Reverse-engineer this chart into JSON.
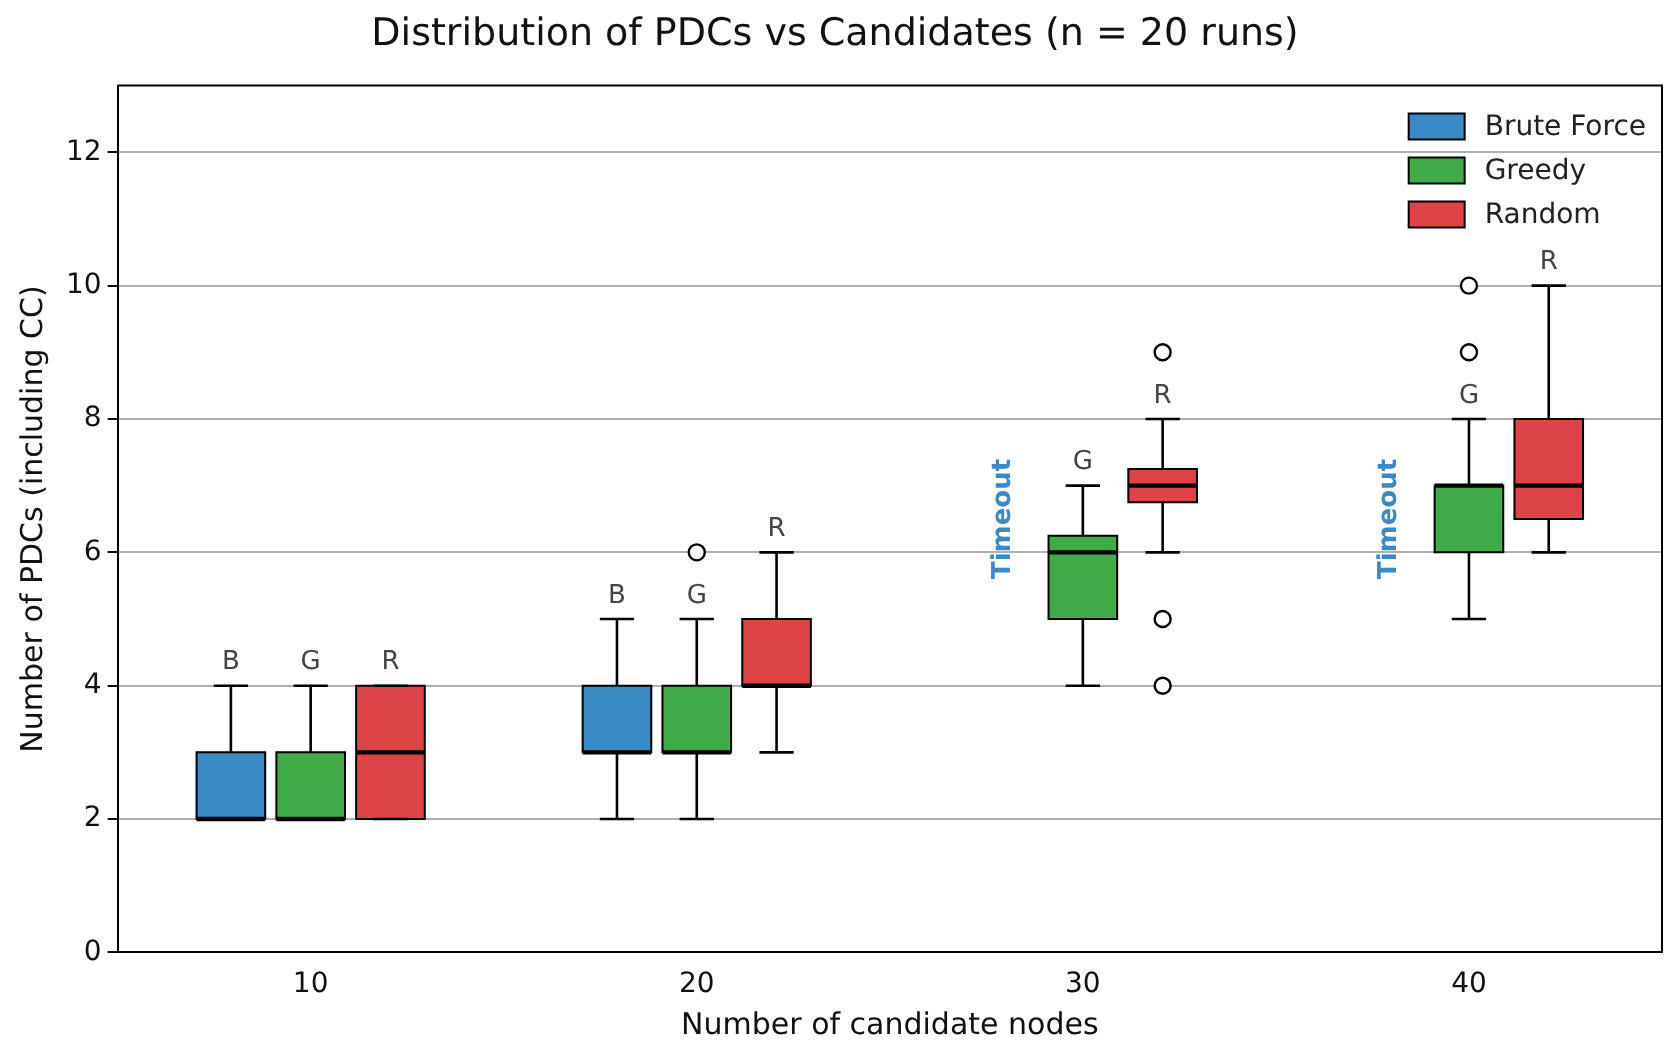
{
  "chart_data": {
    "type": "box",
    "title": "Distribution of PDCs vs Candidates (n = 20 runs)",
    "xlabel": "Number of candidate nodes",
    "ylabel": "Number of PDCs (including CC)",
    "categories": [
      "10",
      "20",
      "30",
      "40"
    ],
    "series": [
      {
        "name": "Brute Force",
        "color": "#3a8ac5",
        "boxes": [
          {
            "low": 2,
            "q1": 2,
            "median": 2,
            "q3": 3,
            "high": 4
          },
          {
            "low": 2,
            "q1": 3,
            "median": 3,
            "q3": 4,
            "high": 5
          },
          null,
          null
        ]
      },
      {
        "name": "Greedy",
        "color": "#41ab47",
        "boxes": [
          {
            "low": 2,
            "q1": 2,
            "median": 2,
            "q3": 3,
            "high": 4
          },
          {
            "low": 2,
            "q1": 3,
            "median": 3,
            "q3": 4,
            "high": 5,
            "outliers": [
              6
            ]
          },
          {
            "low": 4,
            "q1": 5,
            "median": 6,
            "q3": 6.25,
            "high": 7
          },
          {
            "low": 5,
            "q1": 6,
            "median": 7,
            "q3": 7,
            "high": 8,
            "outliers": [
              9,
              10
            ]
          }
        ]
      },
      {
        "name": "Random",
        "color": "#dd4347",
        "boxes": [
          {
            "low": 2,
            "q1": 2,
            "median": 3,
            "q3": 4,
            "high": 4
          },
          {
            "low": 3,
            "q1": 4,
            "median": 4,
            "q3": 5,
            "high": 6
          },
          {
            "low": 6,
            "q1": 6.75,
            "median": 7,
            "q3": 7.25,
            "high": 8,
            "outliers": [
              4,
              5,
              9
            ]
          },
          {
            "low": 6,
            "q1": 6.5,
            "median": 7,
            "q3": 8,
            "high": 10
          }
        ]
      }
    ],
    "annotations": [
      "B",
      "G",
      "R",
      "B",
      "G",
      "R",
      "Timeout",
      "G",
      "R",
      "Timeout",
      "G",
      "R"
    ],
    "ylim": [
      0,
      13
    ],
    "yticks": [
      0,
      2,
      4,
      6,
      8,
      10,
      12
    ],
    "grid": "y",
    "legend": "top right"
  }
}
